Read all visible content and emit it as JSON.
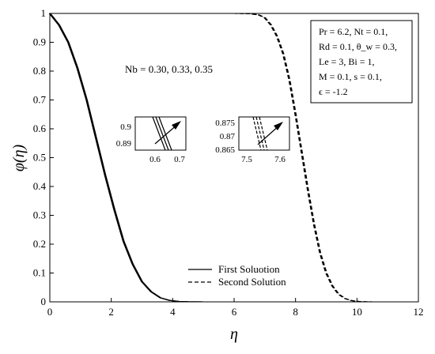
{
  "chart_data": {
    "type": "line",
    "xlabel": "η",
    "ylabel": "φ(η)",
    "xlim": [
      0,
      12
    ],
    "ylim": [
      0,
      1
    ],
    "xticks": [
      "0",
      "2",
      "4",
      "6",
      "8",
      "10",
      "12"
    ],
    "yticks": [
      "0",
      "0.1",
      "0.2",
      "0.3",
      "0.4",
      "0.5",
      "0.6",
      "0.7",
      "0.8",
      "0.9",
      "1"
    ],
    "grid": false,
    "legend_position": "bottom-center",
    "annotation": "Nb = 0.30, 0.33, 0.35",
    "parameters": [
      "Pr = 6.2, Nt = 0.1,",
      "Rd = 0.1, θ_w = 0.3,",
      "Le = 3, Bi = 1,",
      "M = 0.1, s = 0.1,",
      "ϵ = -1.2"
    ],
    "series": [
      {
        "name": "First Soluotion",
        "style": "solid",
        "x": [
          0,
          0.3,
          0.6,
          0.9,
          1.2,
          1.5,
          1.8,
          2.1,
          2.4,
          2.7,
          3.0,
          3.3,
          3.6,
          3.9,
          4.2,
          4.5,
          5,
          6,
          8,
          12
        ],
        "y": [
          1.0,
          0.96,
          0.9,
          0.81,
          0.7,
          0.57,
          0.44,
          0.32,
          0.21,
          0.13,
          0.07,
          0.035,
          0.014,
          0.005,
          0.0015,
          0.0004,
          0,
          0,
          0,
          0
        ],
        "nb_values": [
          "0.30",
          "0.33",
          "0.35"
        ]
      },
      {
        "name": "Second Solution",
        "style": "dashed",
        "x": [
          0,
          2,
          4,
          6,
          6.5,
          6.8,
          7.0,
          7.2,
          7.4,
          7.6,
          7.8,
          8.0,
          8.2,
          8.4,
          8.6,
          8.8,
          9.0,
          9.2,
          9.4,
          9.6,
          9.8,
          10.0,
          10.2,
          10.5,
          11,
          12
        ],
        "y": [
          1.0,
          1.0,
          1.0,
          1.0,
          0.999,
          0.995,
          0.985,
          0.96,
          0.92,
          0.86,
          0.77,
          0.65,
          0.52,
          0.39,
          0.27,
          0.17,
          0.1,
          0.055,
          0.027,
          0.012,
          0.005,
          0.0018,
          0.0006,
          0,
          0,
          0
        ],
        "nb_values": [
          "0.30",
          "0.33",
          "0.35"
        ]
      }
    ],
    "insets": [
      {
        "xticks": [
          "0.6",
          "0.7"
        ],
        "yticks": [
          "0.9",
          "0.89"
        ],
        "xlim": [
          0.55,
          0.72
        ],
        "ylim": [
          0.885,
          0.905
        ]
      },
      {
        "xticks": [
          "7.5",
          "7.6"
        ],
        "yticks": [
          "0.875",
          "0.87",
          "0.865"
        ],
        "xlim": [
          7.48,
          7.64
        ],
        "ylim": [
          0.8625,
          0.8775
        ]
      }
    ]
  }
}
